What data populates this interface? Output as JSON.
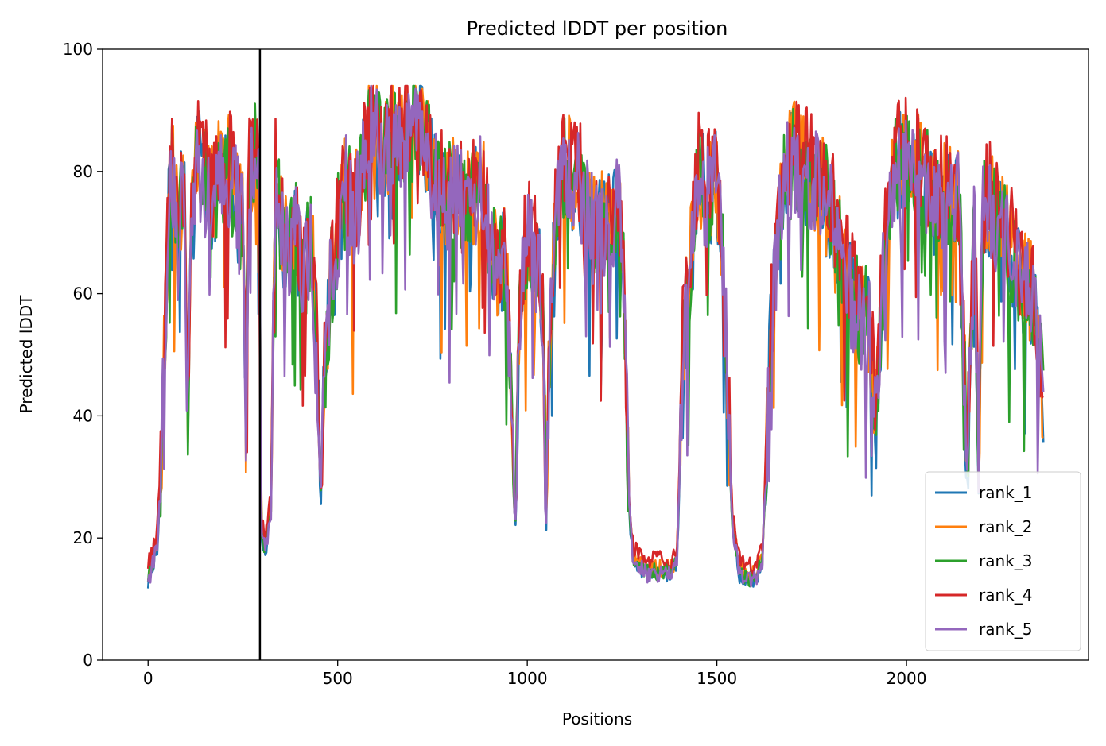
{
  "chart_data": {
    "type": "line",
    "title": "Predicted lDDT per position",
    "xlabel": "Positions",
    "ylabel": "Predicted lDDT",
    "xlim": [
      -120,
      2480
    ],
    "ylim": [
      0,
      100
    ],
    "x_ticks": [
      0,
      500,
      1000,
      1500,
      2000
    ],
    "y_ticks": [
      0,
      20,
      40,
      60,
      80,
      100
    ],
    "grid": false,
    "legend_position": "lower right",
    "vline": 295,
    "x_max": 2362,
    "profile": [
      [
        0,
        13
      ],
      [
        10,
        15
      ],
      [
        25,
        19
      ],
      [
        40,
        42
      ],
      [
        55,
        76
      ],
      [
        65,
        80
      ],
      [
        80,
        72
      ],
      [
        95,
        78
      ],
      [
        105,
        41
      ],
      [
        115,
        70
      ],
      [
        130,
        82
      ],
      [
        150,
        78
      ],
      [
        170,
        74
      ],
      [
        190,
        80
      ],
      [
        210,
        80
      ],
      [
        230,
        76
      ],
      [
        250,
        70
      ],
      [
        258,
        37
      ],
      [
        265,
        78
      ],
      [
        280,
        82
      ],
      [
        294,
        80
      ],
      [
        298,
        20
      ],
      [
        310,
        18
      ],
      [
        325,
        25
      ],
      [
        335,
        80
      ],
      [
        350,
        70
      ],
      [
        370,
        66
      ],
      [
        390,
        70
      ],
      [
        410,
        62
      ],
      [
        430,
        70
      ],
      [
        445,
        50
      ],
      [
        455,
        25
      ],
      [
        465,
        45
      ],
      [
        480,
        60
      ],
      [
        500,
        70
      ],
      [
        520,
        78
      ],
      [
        540,
        72
      ],
      [
        560,
        76
      ],
      [
        580,
        86
      ],
      [
        600,
        86
      ],
      [
        630,
        84
      ],
      [
        660,
        85
      ],
      [
        690,
        86
      ],
      [
        720,
        86
      ],
      [
        750,
        80
      ],
      [
        780,
        76
      ],
      [
        810,
        76
      ],
      [
        850,
        73
      ],
      [
        880,
        78
      ],
      [
        900,
        68
      ],
      [
        920,
        64
      ],
      [
        940,
        65
      ],
      [
        955,
        50
      ],
      [
        968,
        20
      ],
      [
        980,
        58
      ],
      [
        1000,
        70
      ],
      [
        1020,
        66
      ],
      [
        1040,
        60
      ],
      [
        1050,
        22
      ],
      [
        1060,
        56
      ],
      [
        1080,
        76
      ],
      [
        1100,
        80
      ],
      [
        1130,
        78
      ],
      [
        1160,
        74
      ],
      [
        1190,
        70
      ],
      [
        1220,
        72
      ],
      [
        1240,
        74
      ],
      [
        1255,
        60
      ],
      [
        1268,
        25
      ],
      [
        1280,
        16
      ],
      [
        1300,
        15
      ],
      [
        1320,
        14
      ],
      [
        1340,
        14
      ],
      [
        1360,
        14
      ],
      [
        1380,
        14
      ],
      [
        1395,
        16
      ],
      [
        1410,
        50
      ],
      [
        1430,
        64
      ],
      [
        1450,
        80
      ],
      [
        1470,
        76
      ],
      [
        1500,
        78
      ],
      [
        1520,
        60
      ],
      [
        1540,
        22
      ],
      [
        1560,
        14
      ],
      [
        1580,
        13
      ],
      [
        1600,
        13
      ],
      [
        1620,
        16
      ],
      [
        1640,
        50
      ],
      [
        1660,
        70
      ],
      [
        1680,
        78
      ],
      [
        1700,
        82
      ],
      [
        1730,
        80
      ],
      [
        1760,
        78
      ],
      [
        1790,
        76
      ],
      [
        1820,
        68
      ],
      [
        1850,
        60
      ],
      [
        1880,
        56
      ],
      [
        1900,
        55
      ],
      [
        1920,
        40
      ],
      [
        1935,
        60
      ],
      [
        1960,
        78
      ],
      [
        1990,
        82
      ],
      [
        2020,
        80
      ],
      [
        2050,
        78
      ],
      [
        2080,
        74
      ],
      [
        2110,
        76
      ],
      [
        2140,
        74
      ],
      [
        2160,
        30
      ],
      [
        2180,
        74
      ],
      [
        2190,
        28
      ],
      [
        2200,
        72
      ],
      [
        2220,
        74
      ],
      [
        2250,
        70
      ],
      [
        2280,
        66
      ],
      [
        2300,
        62
      ],
      [
        2320,
        60
      ],
      [
        2340,
        58
      ],
      [
        2362,
        40
      ]
    ],
    "series": [
      {
        "name": "rank_1",
        "color": "#1f77b4",
        "offset": 0.0,
        "seed": 11
      },
      {
        "name": "rank_2",
        "color": "#ff7f0e",
        "offset": 1.0,
        "seed": 23
      },
      {
        "name": "rank_3",
        "color": "#2ca02c",
        "offset": 0.5,
        "seed": 37
      },
      {
        "name": "rank_4",
        "color": "#d62728",
        "offset": 2.5,
        "seed": 41
      },
      {
        "name": "rank_5",
        "color": "#9467bd",
        "offset": 0.0,
        "seed": 59
      }
    ]
  }
}
